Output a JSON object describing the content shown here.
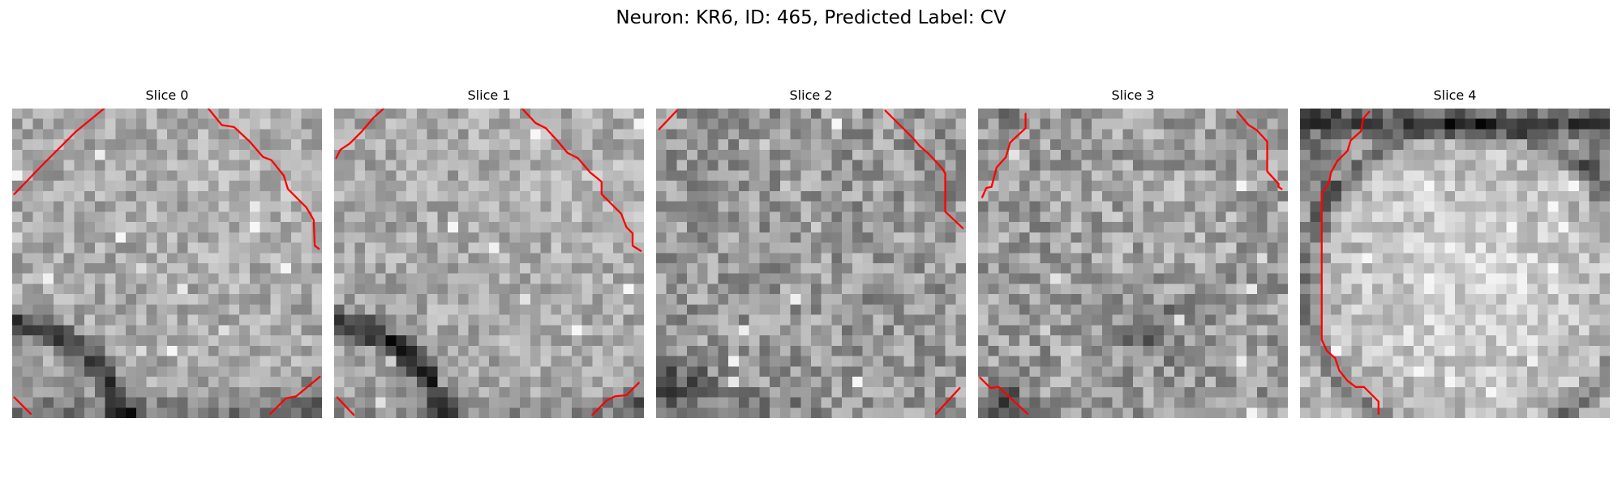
{
  "figure": {
    "title": "Neuron: KR6, ID: 465, Predicted Label: CV"
  },
  "colors": {
    "background": "#ffffff",
    "contour": "#ff0000",
    "colormap": "gray"
  },
  "panels": [
    {
      "title": "Slice 0",
      "icon": "grayscale-microscopy-slice",
      "visible_structures": [
        "light granular membrane texture",
        "dark curved band near lower left",
        "dark shadow along bottom edge"
      ],
      "contours": [
        [
          [
            0.2,
            8.3
          ],
          [
            3.0,
            5.4
          ],
          [
            6.1,
            2.3
          ],
          [
            8.9,
            0.0
          ]
        ],
        [
          [
            19.0,
            0.0
          ],
          [
            20.3,
            1.6
          ],
          [
            21.5,
            1.8
          ],
          [
            23.0,
            3.2
          ],
          [
            24.3,
            4.7
          ],
          [
            25.1,
            5.0
          ],
          [
            26.3,
            6.5
          ],
          [
            26.7,
            7.8
          ],
          [
            28.5,
            9.6
          ],
          [
            29.2,
            10.8
          ],
          [
            29.3,
            13.3
          ],
          [
            29.7,
            13.6
          ]
        ],
        [
          [
            0.2,
            28.0
          ],
          [
            1.8,
            29.6
          ]
        ],
        [
          [
            25.0,
            29.6
          ],
          [
            26.5,
            28.1
          ],
          [
            27.5,
            27.9
          ],
          [
            29.8,
            26.0
          ]
        ]
      ]
    },
    {
      "title": "Slice 1",
      "icon": "grayscale-microscopy-slice",
      "visible_structures": [
        "light granular membrane texture",
        "dark curved band near lower left",
        "dark shadow along bottom right corner"
      ],
      "contours": [
        [
          [
            0.2,
            4.8
          ],
          [
            0.6,
            4.0
          ],
          [
            1.5,
            3.4
          ],
          [
            2.7,
            2.2
          ],
          [
            3.8,
            0.9
          ],
          [
            4.8,
            0.0
          ]
        ],
        [
          [
            18.2,
            0.0
          ],
          [
            19.5,
            1.4
          ],
          [
            20.5,
            1.9
          ],
          [
            21.6,
            3.1
          ],
          [
            22.6,
            4.3
          ],
          [
            23.6,
            4.8
          ],
          [
            24.8,
            6.2
          ],
          [
            25.9,
            7.1
          ],
          [
            25.9,
            8.3
          ],
          [
            27.8,
            10.2
          ],
          [
            28.3,
            11.5
          ],
          [
            28.9,
            12.1
          ],
          [
            28.9,
            13.3
          ],
          [
            29.7,
            13.8
          ]
        ],
        [
          [
            0.3,
            28.0
          ],
          [
            1.9,
            29.7
          ]
        ],
        [
          [
            25.0,
            29.7
          ],
          [
            26.4,
            28.3
          ],
          [
            27.2,
            27.9
          ],
          [
            28.3,
            27.8
          ],
          [
            29.5,
            26.6
          ]
        ]
      ]
    },
    {
      "title": "Slice 2",
      "icon": "grayscale-microscopy-slice",
      "visible_structures": [
        "uniform granular gray texture",
        "darker patches along bottom left"
      ],
      "contours": [
        [
          [
            0.3,
            2.0
          ],
          [
            2.0,
            0.2
          ]
        ],
        [
          [
            22.2,
            0.2
          ],
          [
            23.6,
            1.6
          ],
          [
            24.9,
            2.9
          ],
          [
            25.5,
            3.6
          ],
          [
            26.4,
            4.4
          ],
          [
            27.7,
            5.8
          ],
          [
            28.0,
            6.3
          ],
          [
            28.0,
            10.0
          ],
          [
            29.7,
            11.6
          ]
        ],
        [
          [
            27.1,
            29.6
          ],
          [
            29.4,
            27.1
          ]
        ]
      ]
    },
    {
      "title": "Slice 3",
      "icon": "grayscale-microscopy-slice",
      "visible_structures": [
        "granular gray texture",
        "diffuse dark patch near lower center",
        "dark speckles along bottom left"
      ],
      "contours": [
        [
          [
            0.4,
            8.6
          ],
          [
            0.8,
            7.7
          ],
          [
            1.3,
            7.6
          ],
          [
            1.8,
            5.7
          ],
          [
            2.7,
            4.7
          ],
          [
            3.1,
            3.3
          ],
          [
            4.6,
            1.9
          ],
          [
            4.6,
            0.5
          ]
        ],
        [
          [
            25.1,
            0.3
          ],
          [
            26.2,
            1.6
          ],
          [
            27.0,
            2.1
          ],
          [
            28.0,
            3.2
          ],
          [
            28.0,
            6.1
          ],
          [
            29.1,
            7.3
          ],
          [
            29.1,
            7.6
          ],
          [
            29.4,
            7.8
          ]
        ],
        [
          [
            0.2,
            26.1
          ],
          [
            1.2,
            27.1
          ],
          [
            2.0,
            27.0
          ],
          [
            3.5,
            28.4
          ],
          [
            4.8,
            29.6
          ]
        ]
      ]
    },
    {
      "title": "Slice 4",
      "icon": "grayscale-microscopy-slice",
      "visible_structures": [
        "large bright round cell body",
        "dark band along top edge",
        "dark arc along upper left"
      ],
      "contours": [
        [
          [
            6.7,
            0.3
          ],
          [
            6.1,
            1.0
          ],
          [
            5.9,
            2.2
          ],
          [
            4.9,
            3.1
          ],
          [
            4.6,
            4.1
          ],
          [
            3.6,
            5.1
          ],
          [
            3.0,
            6.2
          ],
          [
            2.8,
            7.2
          ],
          [
            2.4,
            7.8
          ],
          [
            2.1,
            8.3
          ],
          [
            2.1,
            22.4
          ],
          [
            2.6,
            23.5
          ],
          [
            3.4,
            24.2
          ],
          [
            3.8,
            25.4
          ],
          [
            4.6,
            26.4
          ],
          [
            5.4,
            27.0
          ],
          [
            6.2,
            27.0
          ],
          [
            7.6,
            28.4
          ],
          [
            7.6,
            29.6
          ]
        ]
      ]
    }
  ]
}
